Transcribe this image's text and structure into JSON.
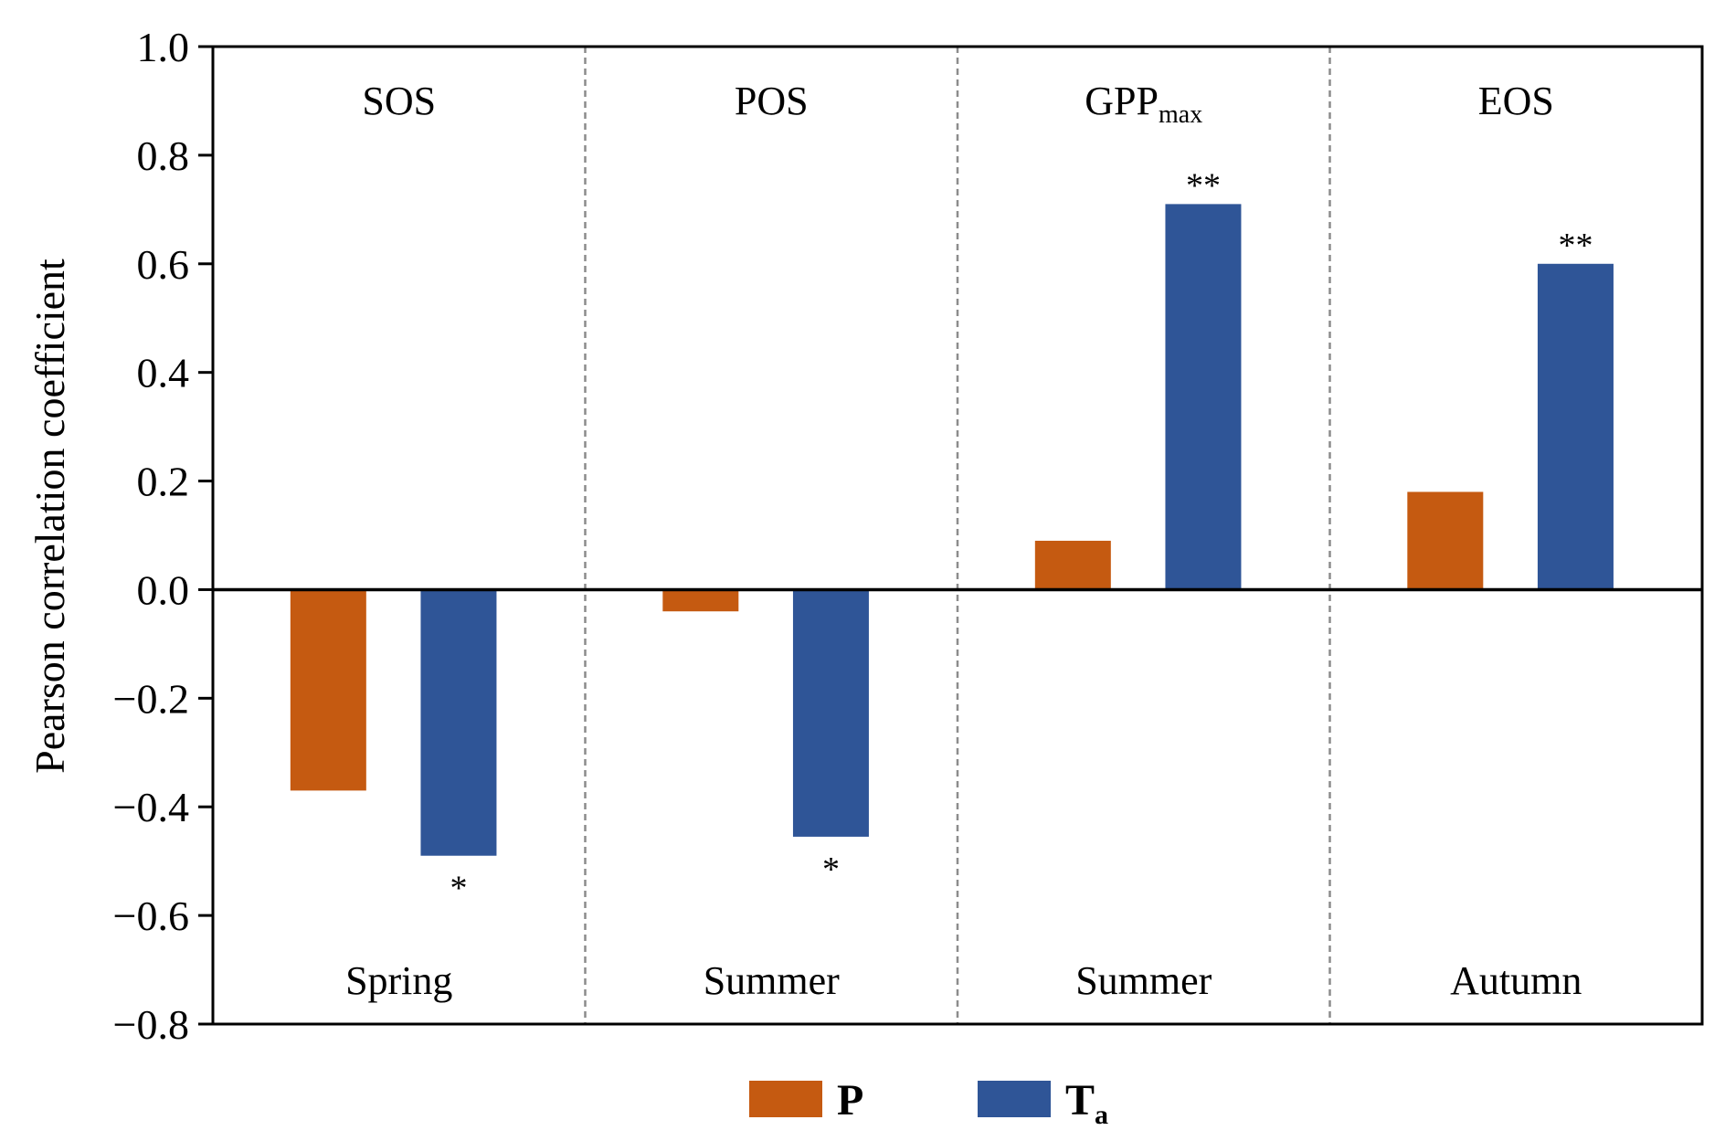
{
  "chart_data": {
    "type": "bar",
    "ylabel": "Pearson correlation coefficient",
    "ylim": [
      -0.8,
      1.0
    ],
    "yticks": [
      -0.8,
      -0.6,
      -0.4,
      -0.2,
      0.0,
      0.2,
      0.4,
      0.6,
      0.8,
      1.0
    ],
    "ytick_labels": [
      "−0.8",
      "−0.6",
      "−0.4",
      "−0.2",
      "0.0",
      "0.2",
      "0.4",
      "0.6",
      "0.8",
      "1.0"
    ],
    "legend_position": "bottom",
    "panels": [
      {
        "title": "SOS",
        "title_sub": "",
        "season": "Spring",
        "values": {
          "P": -0.37,
          "Ta": -0.49
        },
        "significance": {
          "P": "",
          "Ta": "*"
        }
      },
      {
        "title": "POS",
        "title_sub": "",
        "season": "Summer",
        "values": {
          "P": -0.04,
          "Ta": -0.455
        },
        "significance": {
          "P": "",
          "Ta": "*"
        }
      },
      {
        "title": "GPP",
        "title_sub": "max",
        "season": "Summer",
        "values": {
          "P": 0.09,
          "Ta": 0.71
        },
        "significance": {
          "P": "",
          "Ta": "**"
        }
      },
      {
        "title": "EOS",
        "title_sub": "",
        "season": "Autumn",
        "values": {
          "P": 0.18,
          "Ta": 0.6
        },
        "significance": {
          "P": "",
          "Ta": "**"
        }
      }
    ],
    "series": [
      {
        "key": "P",
        "name": "P",
        "name_sub": "",
        "color": "#C55A11"
      },
      {
        "key": "Ta",
        "name": "T",
        "name_sub": "a",
        "color": "#2F5597"
      }
    ]
  }
}
